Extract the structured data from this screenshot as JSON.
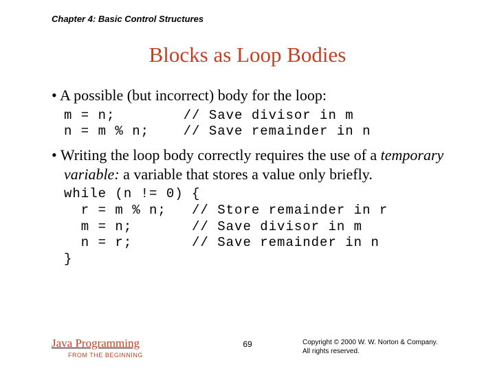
{
  "chapter": "Chapter 4: Basic Control Structures",
  "title": "Blocks as Loop Bodies",
  "bullet1": "A possible (but incorrect) body for the loop:",
  "code1": "m = n;        // Save divisor in m\nn = m % n;    // Save remainder in n",
  "bullet2_pre": "Writing the loop body correctly requires the use of a ",
  "bullet2_em": "temporary variable:",
  "bullet2_post": " a variable that stores a value only briefly.",
  "code2": "while (n != 0) {\n  r = m % n;   // Store remainder in r\n  m = n;       // Save divisor in m\n  n = r;       // Save remainder in n\n}",
  "footer_title": "Java Programming",
  "footer_sub": "FROM THE BEGINNING",
  "page_num": "69",
  "copyright_l1": "Copyright © 2000 W. W. Norton & Company.",
  "copyright_l2": "All rights reserved.",
  "colors": {
    "accent": "#c04020",
    "text": "#000000",
    "background": "#ffffff"
  },
  "fonts": {
    "heading": "Times New Roman",
    "body": "Times New Roman",
    "code": "Courier New",
    "meta": "Arial"
  }
}
